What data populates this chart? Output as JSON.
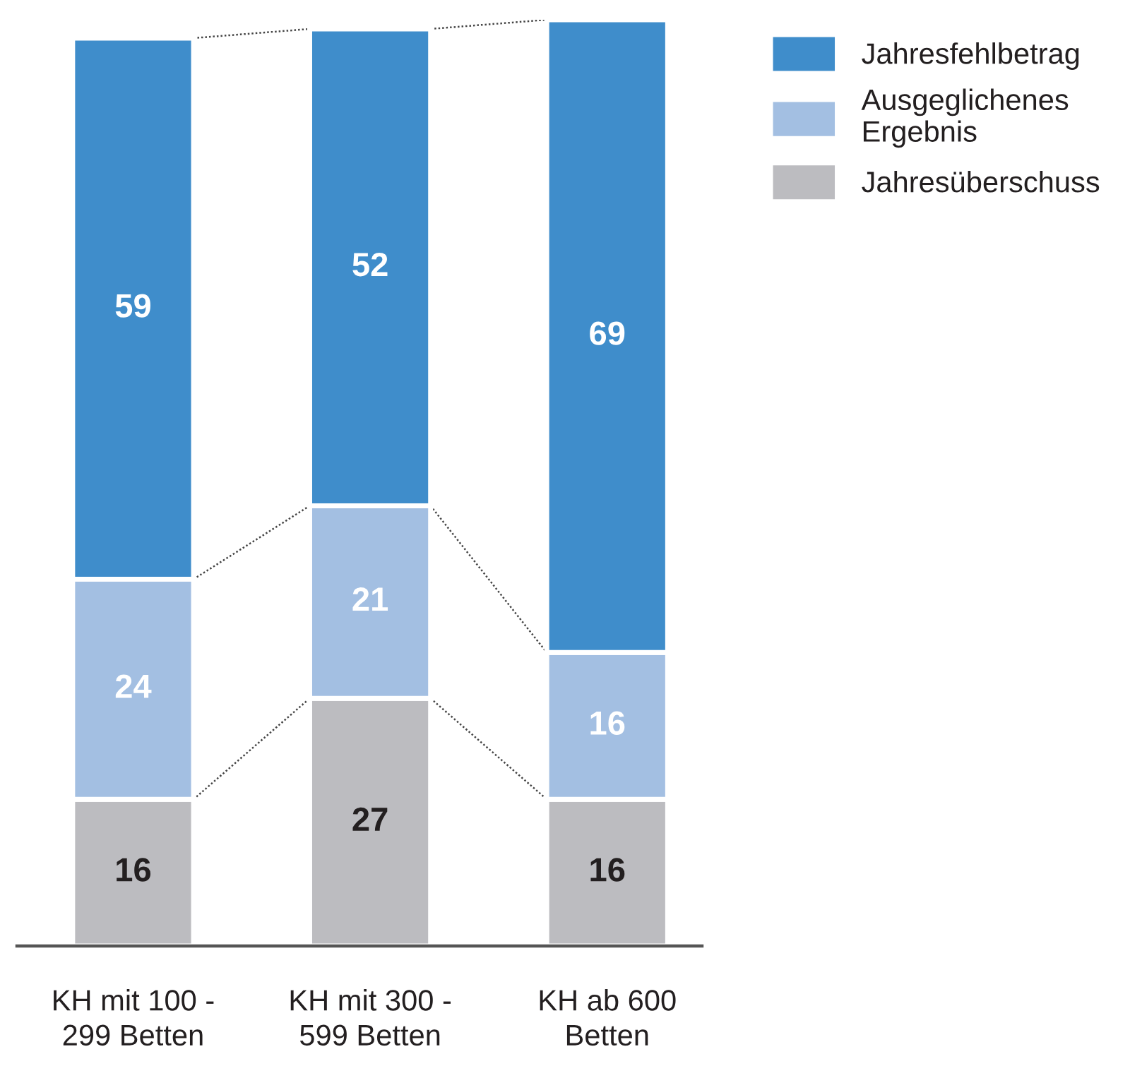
{
  "chart_data": {
    "type": "bar",
    "stacked": true,
    "categories": [
      "KH mit 100 -\n299 Betten",
      "KH mit 300 -\n599 Betten",
      "KH ab 600\nBetten"
    ],
    "series": [
      {
        "name": "Jahresüberschuss",
        "color": "#bcbcc0",
        "values": [
          16,
          27,
          16
        ]
      },
      {
        "name": "Ausgeglichenes\nErgebnis",
        "color": "#a3bfe2",
        "values": [
          24,
          21,
          16
        ]
      },
      {
        "name": "Jahresfehlbetrag",
        "color": "#3f8dcb",
        "values": [
          59,
          52,
          69
        ]
      }
    ],
    "data_labels": true,
    "legend": "top right",
    "grid": false,
    "tick_labels": "x"
  }
}
